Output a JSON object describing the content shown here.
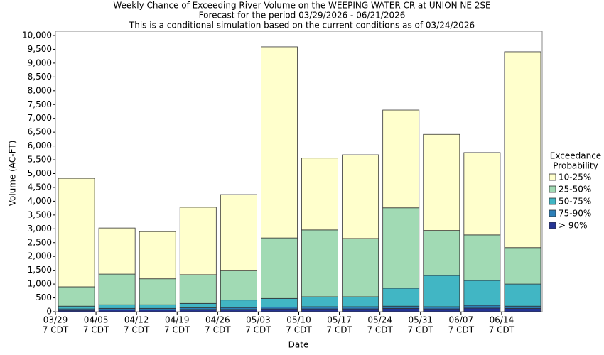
{
  "chart_data": {
    "type": "stacked_bar",
    "title": [
      "Weekly Chance of Exceeding River Volume on the WEEPING WATER CR at UNION NE 2SE",
      "Forecast for the period 03/29/2026 - 06/21/2026",
      "This is a conditional simulation based on the current conditions as of 03/24/2026"
    ],
    "xlabel": "Date",
    "ylabel": "Volume (AC-FT)",
    "legend_title": [
      "Exceedance",
      "Probability"
    ],
    "legend_position": "right",
    "categories": [
      [
        "03/29",
        "7 CDT"
      ],
      [
        "04/05",
        "7 CDT"
      ],
      [
        "04/12",
        "7 CDT"
      ],
      [
        "04/19",
        "7 CDT"
      ],
      [
        "04/26",
        "7 CDT"
      ],
      [
        "05/03",
        "7 CDT"
      ],
      [
        "05/10",
        "7 CDT"
      ],
      [
        "05/17",
        "7 CDT"
      ],
      [
        "05/24",
        "7 CDT"
      ],
      [
        "05/31",
        "7 CDT"
      ],
      [
        "06/07",
        "7 CDT"
      ],
      [
        "06/14",
        "7 CDT"
      ]
    ],
    "series": [
      {
        "name": "> 90%",
        "color": "#253494",
        "values": [
          50,
          70,
          70,
          80,
          80,
          100,
          100,
          100,
          120,
          100,
          130,
          120
        ]
      },
      {
        "name": "75-90%",
        "color": "#2c7fb8",
        "values": [
          50,
          50,
          50,
          60,
          70,
          70,
          80,
          80,
          80,
          80,
          100,
          80
        ]
      },
      {
        "name": "50-75%",
        "color": "#41b6c4",
        "values": [
          100,
          130,
          130,
          160,
          270,
          310,
          360,
          360,
          650,
          1130,
          900,
          800
        ]
      },
      {
        "name": "25-50%",
        "color": "#a1dab4",
        "values": [
          700,
          1110,
          940,
          1040,
          1080,
          2190,
          2420,
          2110,
          2910,
          1630,
          1650,
          1320
        ]
      },
      {
        "name": "10-25%",
        "color": "#ffffcc",
        "values": [
          3930,
          1670,
          1710,
          2440,
          2740,
          6920,
          2600,
          3030,
          3540,
          3480,
          2980,
          7090
        ]
      }
    ],
    "ylim": [
      0,
      10000
    ],
    "yticks": [
      0,
      500,
      {
        "value": 1000,
        "label": "1,000"
      },
      {
        "value": 1500,
        "label": "1,500"
      },
      {
        "value": 2000,
        "label": "2,000"
      },
      {
        "value": 2500,
        "label": "2,500"
      },
      {
        "value": 3000,
        "label": "3,000"
      },
      {
        "value": 3500,
        "label": "3,500"
      },
      {
        "value": 4000,
        "label": "4,000"
      },
      {
        "value": 4500,
        "label": "4,500"
      },
      {
        "value": 5000,
        "label": "5,000"
      },
      {
        "value": 5500,
        "label": "5,500"
      },
      {
        "value": 6000,
        "label": "6,000"
      },
      {
        "value": 6500,
        "label": "6,500"
      },
      {
        "value": 7000,
        "label": "7,000"
      },
      {
        "value": 7500,
        "label": "7,500"
      },
      {
        "value": 8000,
        "label": "8,000"
      },
      {
        "value": 8500,
        "label": "8,500"
      },
      {
        "value": 9000,
        "label": "9,000"
      },
      {
        "value": 9500,
        "label": "9,500"
      },
      {
        "value": 10000,
        "label": "10,000"
      }
    ],
    "grid": false
  }
}
